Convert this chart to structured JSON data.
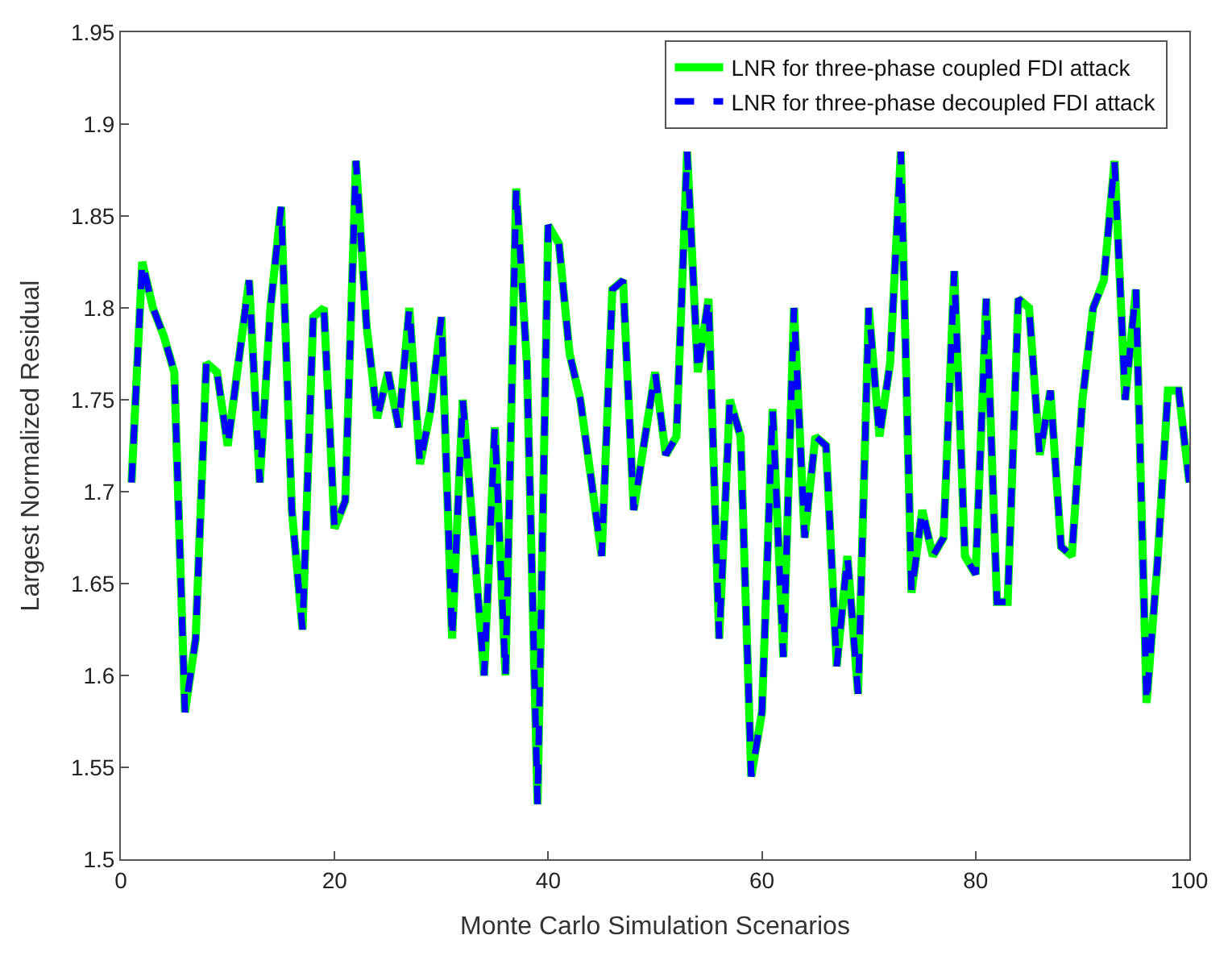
{
  "chart_data": {
    "type": "line",
    "xlabel": "Monte Carlo Simulation Scenarios",
    "ylabel": "Largest Normalized Residual",
    "x": [
      1,
      2,
      3,
      4,
      5,
      6,
      7,
      8,
      9,
      10,
      11,
      12,
      13,
      14,
      15,
      16,
      17,
      18,
      19,
      20,
      21,
      22,
      23,
      24,
      25,
      26,
      27,
      28,
      29,
      30,
      31,
      32,
      33,
      34,
      35,
      36,
      37,
      38,
      39,
      40,
      41,
      42,
      43,
      44,
      45,
      46,
      47,
      48,
      49,
      50,
      51,
      52,
      53,
      54,
      55,
      56,
      57,
      58,
      59,
      60,
      61,
      62,
      63,
      64,
      65,
      66,
      67,
      68,
      69,
      70,
      71,
      72,
      73,
      74,
      75,
      76,
      77,
      78,
      79,
      80,
      81,
      82,
      83,
      84,
      85,
      86,
      87,
      88,
      89,
      90,
      91,
      92,
      93,
      94,
      95,
      96,
      97,
      98,
      99,
      100
    ],
    "series": [
      {
        "name": "LNR for three-phase coupled FDI attack",
        "color": "#00ff00",
        "line_style": "solid",
        "values": [
          1.705,
          1.825,
          1.8,
          1.785,
          1.765,
          1.58,
          1.62,
          1.77,
          1.765,
          1.725,
          1.77,
          1.815,
          1.705,
          1.8,
          1.855,
          1.69,
          1.625,
          1.795,
          1.8,
          1.68,
          1.695,
          1.88,
          1.79,
          1.74,
          1.765,
          1.735,
          1.8,
          1.715,
          1.745,
          1.795,
          1.62,
          1.75,
          1.675,
          1.6,
          1.735,
          1.6,
          1.865,
          1.77,
          1.53,
          1.845,
          1.835,
          1.775,
          1.75,
          1.705,
          1.665,
          1.81,
          1.815,
          1.69,
          1.73,
          1.765,
          1.72,
          1.73,
          1.885,
          1.765,
          1.805,
          1.62,
          1.75,
          1.73,
          1.545,
          1.58,
          1.745,
          1.61,
          1.8,
          1.675,
          1.73,
          1.725,
          1.605,
          1.665,
          1.59,
          1.8,
          1.73,
          1.77,
          1.885,
          1.645,
          1.69,
          1.665,
          1.675,
          1.82,
          1.665,
          1.655,
          1.805,
          1.64,
          1.64,
          1.805,
          1.8,
          1.72,
          1.755,
          1.67,
          1.665,
          1.75,
          1.8,
          1.815,
          1.88,
          1.75,
          1.81,
          1.585,
          1.66,
          1.755,
          1.755,
          1.705
        ]
      },
      {
        "name": "LNR for three-phase decoupled FDI attack",
        "color": "#0000ff",
        "line_style": "dashed",
        "values": [
          1.705,
          1.825,
          1.8,
          1.785,
          1.765,
          1.58,
          1.62,
          1.77,
          1.765,
          1.725,
          1.77,
          1.815,
          1.705,
          1.8,
          1.855,
          1.69,
          1.625,
          1.795,
          1.8,
          1.68,
          1.695,
          1.88,
          1.79,
          1.74,
          1.765,
          1.735,
          1.8,
          1.715,
          1.745,
          1.795,
          1.62,
          1.75,
          1.675,
          1.6,
          1.735,
          1.6,
          1.865,
          1.77,
          1.53,
          1.845,
          1.835,
          1.775,
          1.75,
          1.705,
          1.665,
          1.81,
          1.815,
          1.69,
          1.73,
          1.765,
          1.72,
          1.73,
          1.885,
          1.765,
          1.805,
          1.62,
          1.75,
          1.73,
          1.545,
          1.58,
          1.745,
          1.61,
          1.8,
          1.675,
          1.73,
          1.725,
          1.605,
          1.665,
          1.59,
          1.8,
          1.73,
          1.77,
          1.885,
          1.645,
          1.69,
          1.665,
          1.675,
          1.82,
          1.665,
          1.655,
          1.805,
          1.64,
          1.64,
          1.805,
          1.8,
          1.72,
          1.755,
          1.67,
          1.665,
          1.75,
          1.8,
          1.815,
          1.88,
          1.75,
          1.81,
          1.585,
          1.66,
          1.755,
          1.755,
          1.705
        ]
      }
    ],
    "xlim": [
      0,
      100
    ],
    "xticks": [
      0,
      20,
      40,
      60,
      80,
      100
    ],
    "ylim": [
      1.5,
      1.95
    ],
    "yticks": [
      1.5,
      1.55,
      1.6,
      1.65,
      1.7,
      1.75,
      1.8,
      1.85,
      1.9,
      1.95
    ],
    "grid": false,
    "legend": "top right",
    "marker": "none"
  }
}
